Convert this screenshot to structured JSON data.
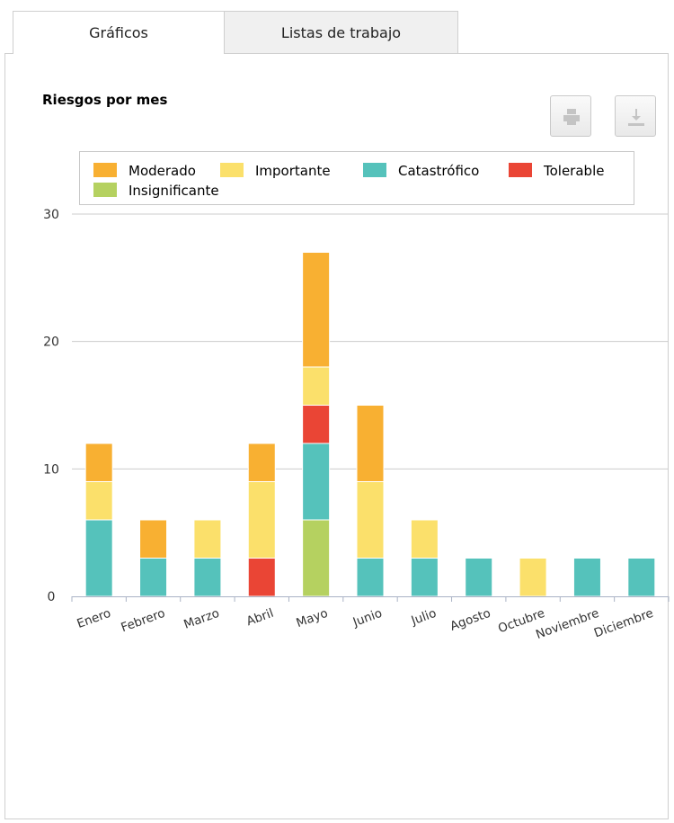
{
  "tabs": [
    {
      "label": "Gráficos",
      "active": true
    },
    {
      "label": "Listas de trabajo",
      "active": false
    }
  ],
  "toolbar": {
    "print_icon": "printer-icon",
    "download_icon": "download-icon"
  },
  "chart_data": {
    "type": "bar",
    "stacked": true,
    "title": "Riesgos por mes",
    "xlabel": "",
    "ylabel": "",
    "ylim": [
      0,
      30
    ],
    "yticks": [
      0,
      10,
      20,
      30
    ],
    "grid": true,
    "legend_position": "top",
    "categories": [
      "Enero",
      "Febrero",
      "Marzo",
      "Abril",
      "Mayo",
      "Junio",
      "Julio",
      "Agosto",
      "Octubre",
      "Noviembre",
      "Diciembre"
    ],
    "series": [
      {
        "name": "Insignificante",
        "color": "#b5d160",
        "values": [
          0,
          0,
          0,
          0,
          6,
          0,
          0,
          0,
          0,
          0,
          0
        ]
      },
      {
        "name": "Catastrófico",
        "color": "#55c2bb",
        "values": [
          6,
          3,
          3,
          0,
          6,
          3,
          3,
          3,
          0,
          3,
          3
        ]
      },
      {
        "name": "Tolerable",
        "color": "#ea4535",
        "values": [
          0,
          0,
          0,
          3,
          3,
          0,
          0,
          0,
          0,
          0,
          0
        ]
      },
      {
        "name": "Importante",
        "color": "#fbe06b",
        "values": [
          3,
          0,
          3,
          6,
          3,
          6,
          3,
          0,
          3,
          0,
          0
        ]
      },
      {
        "name": "Moderado",
        "color": "#f8b032",
        "values": [
          3,
          3,
          0,
          3,
          9,
          6,
          0,
          0,
          0,
          0,
          0
        ]
      }
    ],
    "legend_order": [
      "Moderado",
      "Importante",
      "Catastrófico",
      "Tolerable",
      "Insignificante"
    ]
  }
}
